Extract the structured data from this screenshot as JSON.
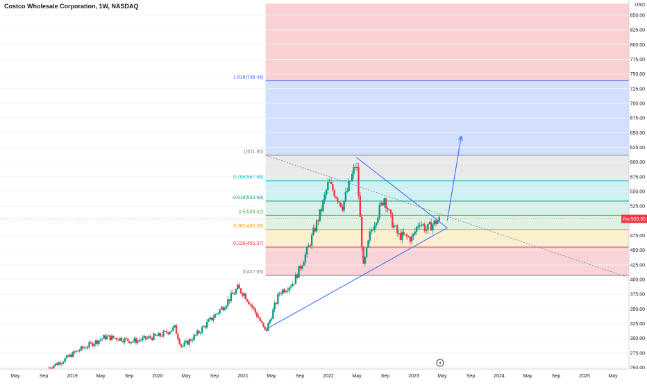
{
  "header": {
    "title": "Costco Wholesale Corporation, 1W, NASDAQ"
  },
  "price_axis": {
    "currency": "USD",
    "ticks": [
      "850.00",
      "825.00",
      "800.00",
      "775.00",
      "750.00",
      "725.00",
      "700.00",
      "675.00",
      "650.00",
      "625.00",
      "600.00",
      "575.00",
      "550.00",
      "525.00",
      "500.00",
      "475.00",
      "450.00",
      "425.00",
      "400.00",
      "375.00",
      "350.00",
      "325.00",
      "300.00",
      "275.00",
      "250.00"
    ],
    "current_price": {
      "label": "Pre",
      "value": "503.30",
      "color": "#f23645"
    }
  },
  "time_axis": {
    "ticks": [
      "May",
      "Sep",
      "2019",
      "May",
      "Sep",
      "2020",
      "May",
      "Sep",
      "2021",
      "May",
      "Sep",
      "2022",
      "May",
      "Sep",
      "2023",
      "May",
      "Sep",
      "2024",
      "May",
      "Sep",
      "2025",
      "May"
    ]
  },
  "fibonacci": {
    "levels": [
      {
        "label": "1.618(738.34)",
        "value": 738.34,
        "color": "#2962ff"
      },
      {
        "label": "1(611.80)",
        "value": 611.8,
        "color": "#787b86"
      },
      {
        "label": "0.786(567.98)",
        "value": 567.98,
        "color": "#00bcd4"
      },
      {
        "label": "0.618(533.58)",
        "value": 533.58,
        "color": "#089981"
      },
      {
        "label": "0.5(509.42)",
        "value": 509.42,
        "color": "#4caf50"
      },
      {
        "label": "0.382(485.26)",
        "value": 485.26,
        "color": "#ff9800"
      },
      {
        "label": "0.236(455.37)",
        "value": 455.37,
        "color": "#f23645"
      },
      {
        "label": "0(407.05)",
        "value": 407.05,
        "color": "#787b86"
      }
    ],
    "zones": [
      {
        "from": 738.34,
        "to": 870,
        "color": "#f7c5c8"
      },
      {
        "from": 611.8,
        "to": 738.34,
        "color": "#c7d7fc"
      },
      {
        "from": 567.98,
        "to": 611.8,
        "color": "#e3e3e6"
      },
      {
        "from": 533.58,
        "to": 567.98,
        "color": "#c6ecef"
      },
      {
        "from": 509.42,
        "to": 533.58,
        "color": "#cfece4"
      },
      {
        "from": 485.26,
        "to": 509.42,
        "color": "#d8eedc"
      },
      {
        "from": 455.37,
        "to": 485.26,
        "color": "#fbe8c8"
      },
      {
        "from": 407.05,
        "to": 455.37,
        "color": "#f7c8cc"
      }
    ]
  },
  "chart_data": {
    "type": "candlestick",
    "title": "Costco Wholesale Corporation, 1W, NASDAQ",
    "ylim": [
      250,
      870
    ],
    "xlim": [
      "2018-01",
      "2025-07"
    ],
    "colors": {
      "up": "#089981",
      "down": "#f23645"
    },
    "series_approx": [
      [
        "2018-08",
        250
      ],
      [
        "2018-10",
        262
      ],
      [
        "2018-12",
        278
      ],
      [
        "2019-02",
        290
      ],
      [
        "2019-04",
        302
      ],
      [
        "2019-06",
        300
      ],
      [
        "2019-08",
        295
      ],
      [
        "2019-10",
        300
      ],
      [
        "2019-12",
        305
      ],
      [
        "2020-02",
        318
      ],
      [
        "2020-03",
        285
      ],
      [
        "2020-05",
        305
      ],
      [
        "2020-07",
        330
      ],
      [
        "2020-09",
        355
      ],
      [
        "2020-11",
        385
      ],
      [
        "2020-12",
        375
      ],
      [
        "2021-02",
        335
      ],
      [
        "2021-03",
        310
      ],
      [
        "2021-05",
        378
      ],
      [
        "2021-07",
        395
      ],
      [
        "2021-09",
        450
      ],
      [
        "2021-11",
        520
      ],
      [
        "2021-12",
        565
      ],
      [
        "2022-02",
        525
      ],
      [
        "2022-04",
        600
      ],
      [
        "2022-05",
        420
      ],
      [
        "2022-06",
        480
      ],
      [
        "2022-08",
        540
      ],
      [
        "2022-09",
        500
      ],
      [
        "2022-10",
        475
      ],
      [
        "2022-12",
        470
      ],
      [
        "2023-01",
        500
      ],
      [
        "2023-02",
        485
      ],
      [
        "2023-03",
        495
      ],
      [
        "2023-04",
        503
      ]
    ],
    "drawings": {
      "triangle_upper": [
        [
          "2022-04",
          608
        ],
        [
          "2023-05",
          488
        ]
      ],
      "triangle_lower": [
        [
          "2021-03",
          315
        ],
        [
          "2023-05",
          488
        ]
      ],
      "dotted_trend": [
        [
          "2021-03",
          611.8
        ],
        [
          "2025-07",
          403
        ]
      ],
      "projection_arrow": [
        [
          "2023-05",
          500
        ],
        [
          "2023-07",
          644
        ]
      ]
    }
  }
}
